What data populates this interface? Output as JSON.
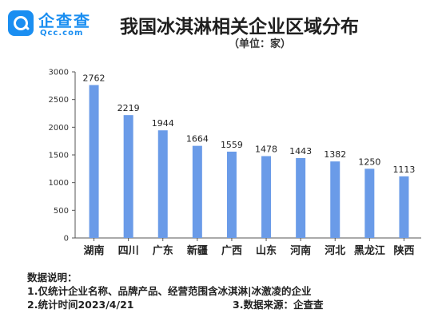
{
  "logo": {
    "text_cn": "企查查",
    "text_en": "Qcc.com"
  },
  "title": "我国冰淇淋相关企业区域分布",
  "subtitle": "（单位：家）",
  "chart_data": {
    "type": "bar",
    "categories": [
      "湖南",
      "四川",
      "广东",
      "新疆",
      "广西",
      "山东",
      "河南",
      "河北",
      "黑龙江",
      "陕西"
    ],
    "values": [
      2762,
      2219,
      1944,
      1664,
      1559,
      1478,
      1443,
      1382,
      1250,
      1113
    ],
    "yticks": [
      0,
      500,
      1000,
      1500,
      2000,
      2500,
      3000
    ],
    "ylim": [
      0,
      3000
    ],
    "grid": false,
    "bar_color": "#6a9be8"
  },
  "notes": {
    "heading": "数据说明：",
    "line1": "1.仅统计企业名称、品牌产品、经营范围含冰淇淋|冰激凌的企业",
    "line2": "2.统计时间2023/4/21",
    "line3": "3.数据来源：企查查"
  }
}
